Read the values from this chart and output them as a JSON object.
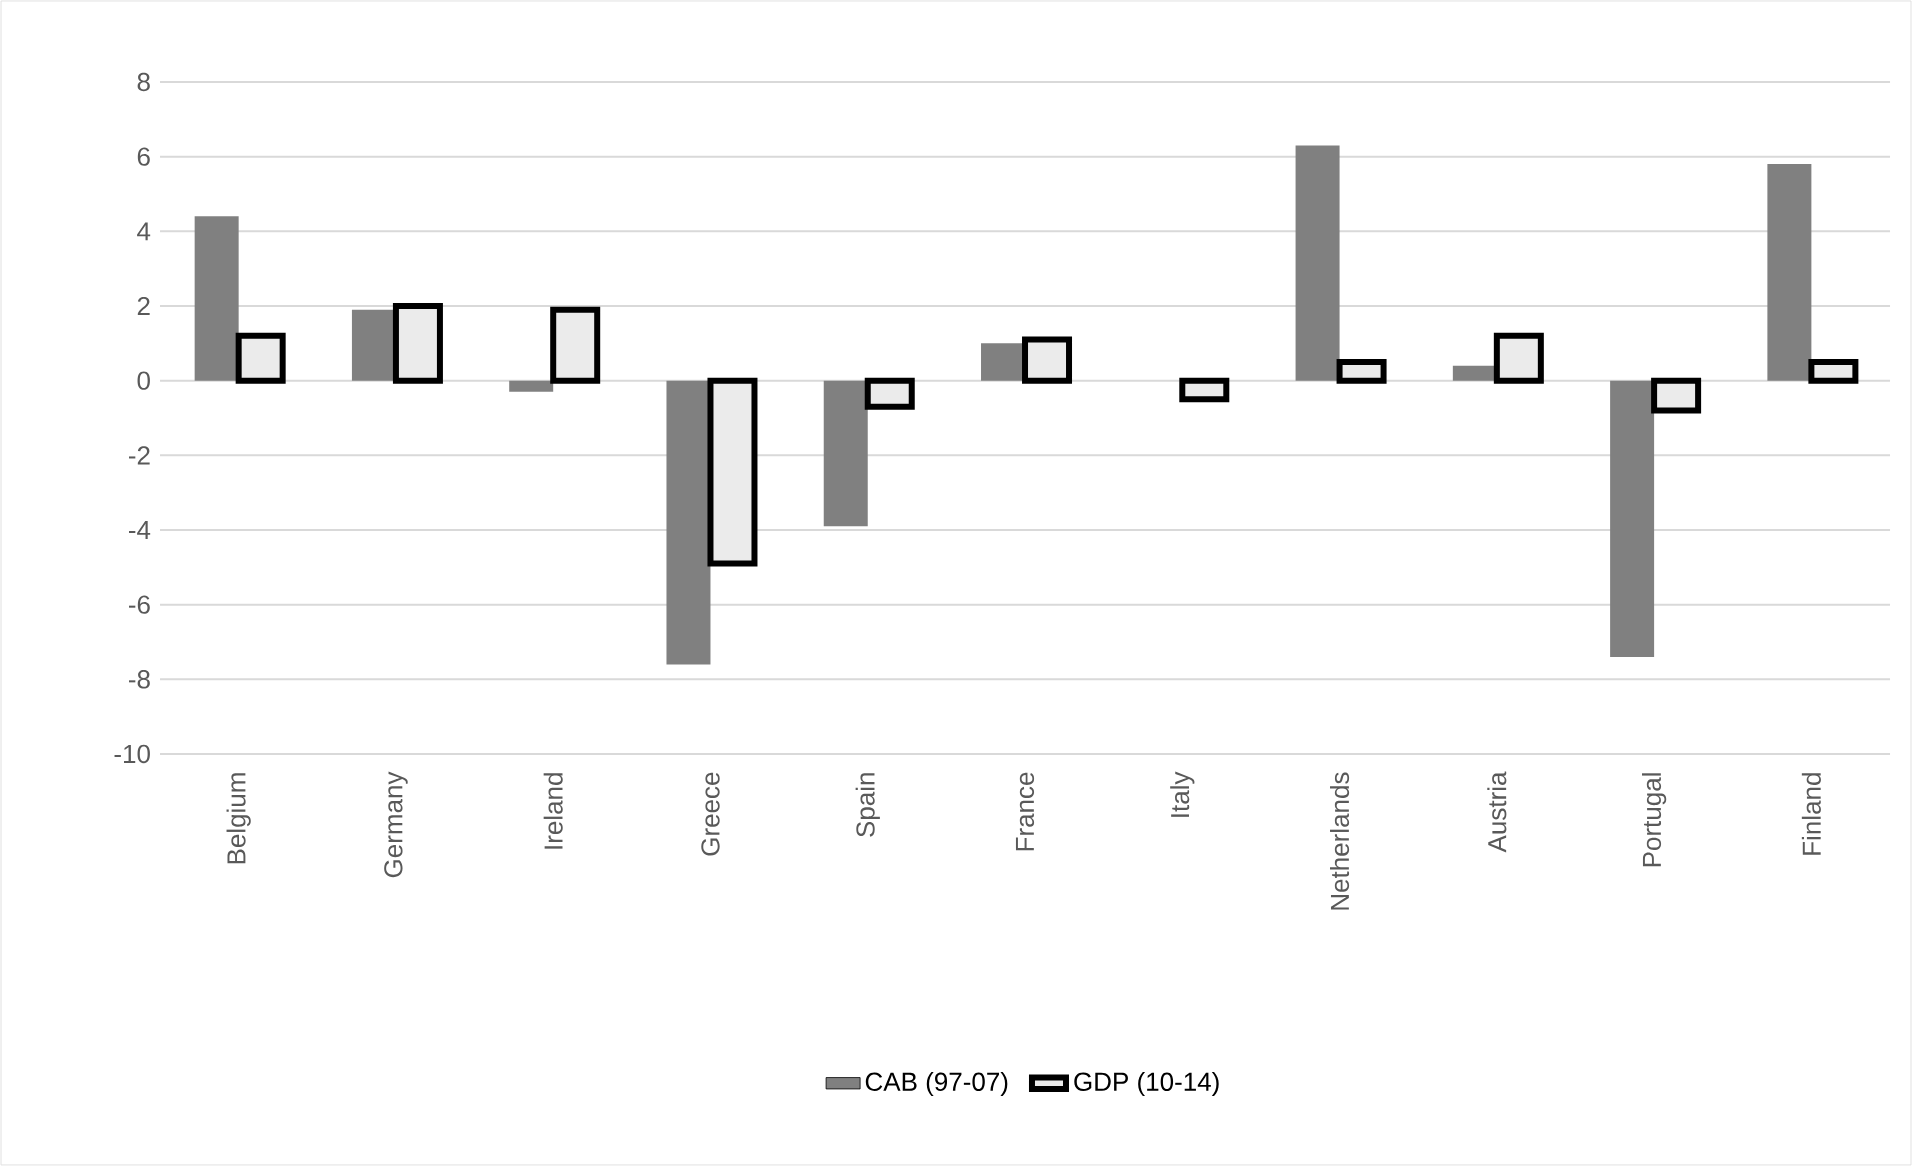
{
  "chart_data": {
    "type": "bar",
    "categories": [
      "Belgium",
      "Germany",
      "Ireland",
      "Greece",
      "Spain",
      "France",
      "Italy",
      "Netherlands",
      "Austria",
      "Portugal",
      "Finland"
    ],
    "series": [
      {
        "name": "CAB (97-07)",
        "color": "#808080",
        "values": [
          4.4,
          1.9,
          -0.3,
          -7.6,
          -3.9,
          1.0,
          0,
          6.3,
          0.4,
          -7.4,
          5.8
        ]
      },
      {
        "name": "GDP (10-14)",
        "color": "#000000",
        "values": [
          1.2,
          2.0,
          1.9,
          -4.9,
          -0.7,
          1.1,
          -0.5,
          0.5,
          1.2,
          -0.8,
          0.5
        ]
      }
    ],
    "ylim": [
      -10,
      8
    ],
    "yticks": [
      -10,
      -8,
      -6,
      -4,
      -2,
      0,
      2,
      4,
      6,
      8
    ],
    "grid": "y",
    "legend": "bottom"
  }
}
